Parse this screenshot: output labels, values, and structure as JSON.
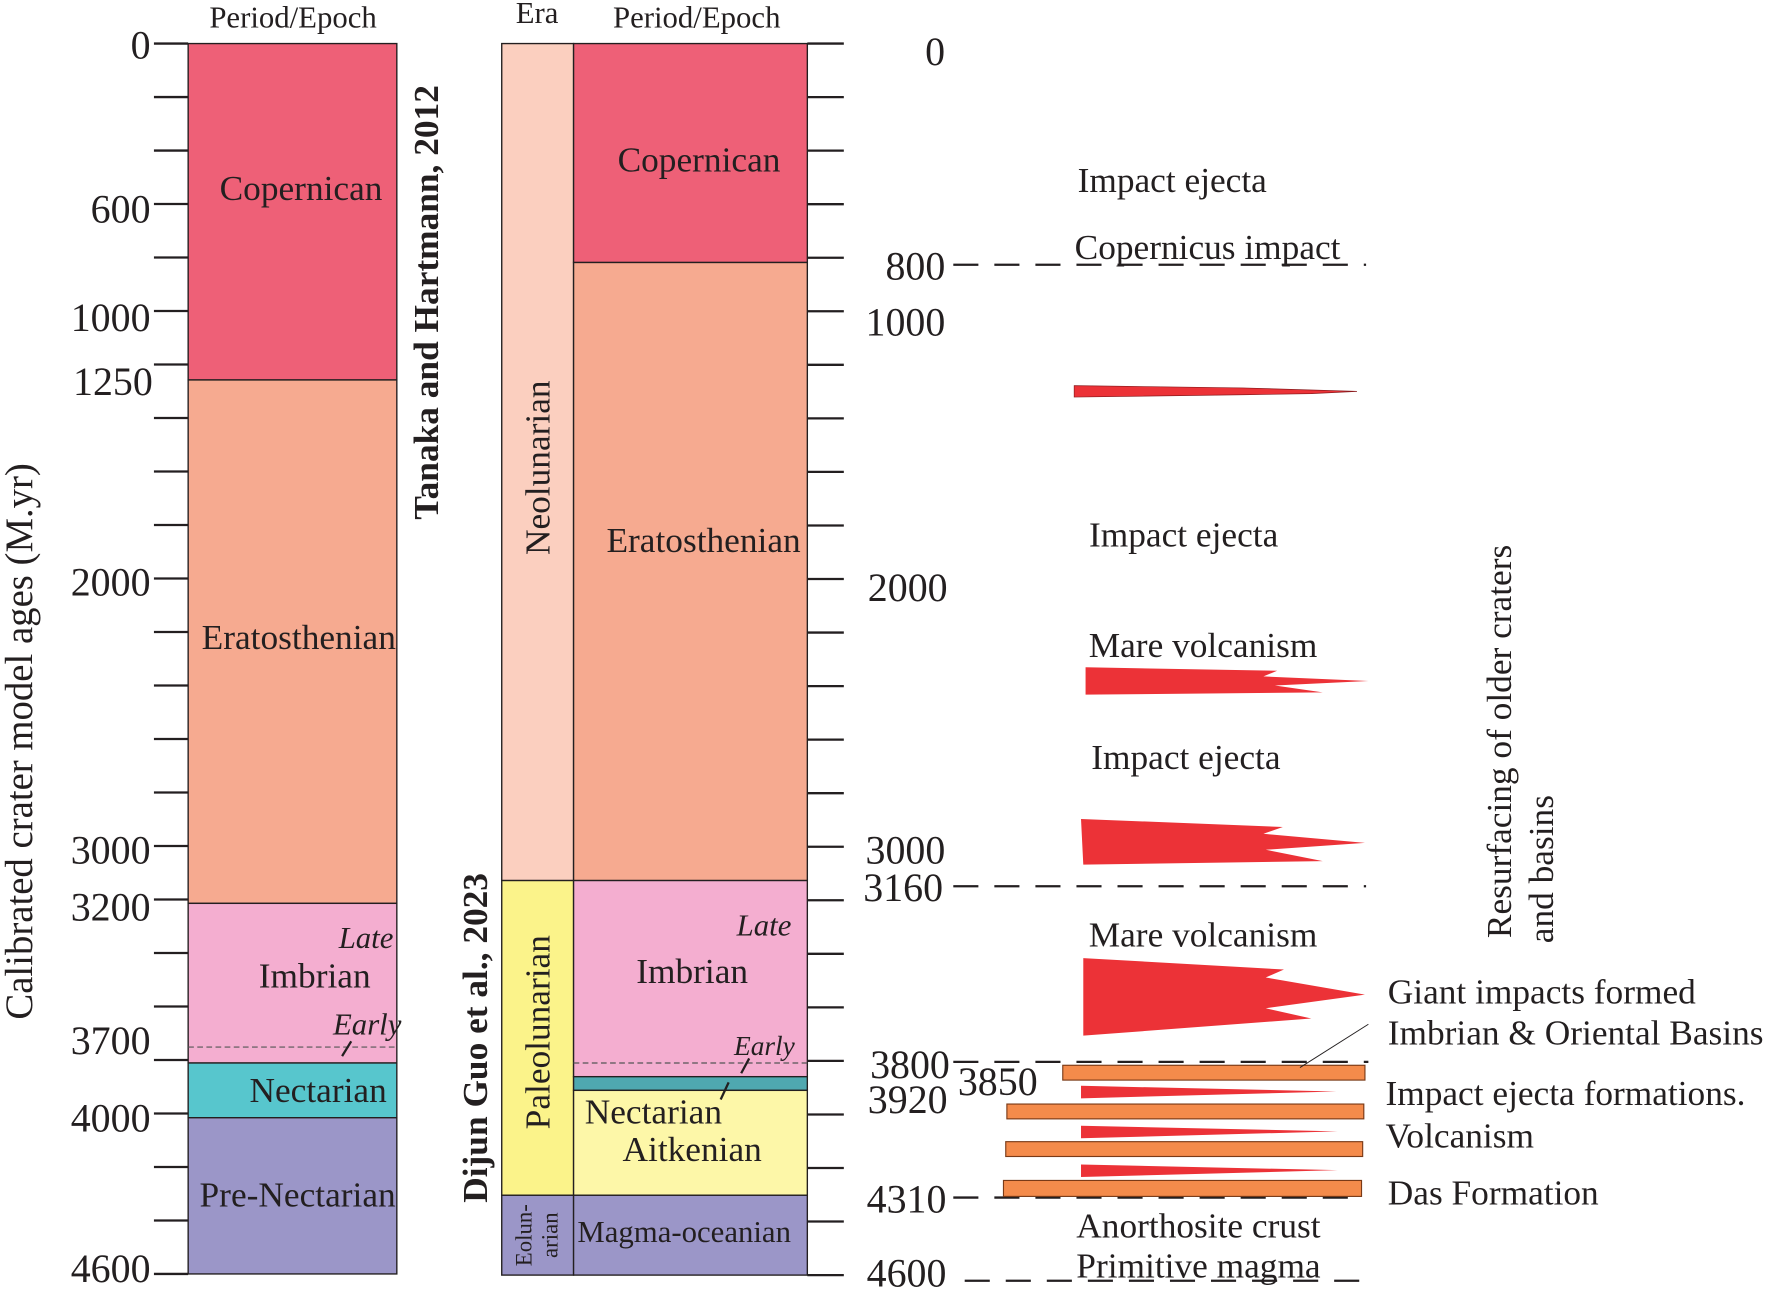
{
  "left_column": {
    "header": "Period/Epoch",
    "axis_title": "Calibrated crater model ages (M.yr)",
    "source": "Tanaka and Hartmann, 2012",
    "tick_labels": [
      "0",
      "600",
      "1000",
      "1250",
      "2000",
      "3000",
      "3200",
      "3700",
      "4000",
      "4600"
    ],
    "units": [
      {
        "name": "Copernican",
        "from": 0,
        "to": 1250,
        "color": "#ee6077"
      },
      {
        "name": "Eratosthenian",
        "from": 1250,
        "to": 3200,
        "color": "#f6aa90"
      },
      {
        "name": "Imbrian",
        "from": 3200,
        "to": 3850,
        "color": "#f4aed0",
        "late": "Late",
        "early": "Early"
      },
      {
        "name": "Nectarian",
        "from": 3850,
        "to": 4000,
        "color": "#57c6cd"
      },
      {
        "name": "Pre-Nectarian",
        "from": 4000,
        "to": 4600,
        "color": "#9b96c8"
      }
    ]
  },
  "right_column": {
    "era_header": "Era",
    "period_header": "Period/Epoch",
    "source": "Dijun Guo et al., 2023",
    "eras": [
      {
        "name": "Neolunarian",
        "color": "#fbcfbf"
      },
      {
        "name": "Paleolunarian",
        "color": "#fbf38a"
      },
      {
        "name": "Eolun-",
        "name2": "arian",
        "color": "#9b96c8"
      }
    ],
    "units": [
      {
        "name": "Copernican",
        "color": "#ee6077"
      },
      {
        "name": "Eratosthenian",
        "color": "#f6aa90"
      },
      {
        "name": "Imbrian",
        "color": "#f4aed0",
        "late": "Late",
        "early": "Early"
      },
      {
        "name": "Nectarian",
        "color": "#4fa8b0"
      },
      {
        "name": "Aitkenian",
        "color": "#fdf7a8"
      },
      {
        "name": "Magma-oceanian",
        "color": "#9b96c8"
      }
    ],
    "tick_labels": [
      "0",
      "800",
      "1000",
      "2000",
      "3000",
      "3160",
      "3800",
      "3850",
      "3920",
      "4310",
      "4600"
    ]
  },
  "events": {
    "impact_ejecta_1": "Impact ejecta",
    "copernicus_impact": "Copernicus impact",
    "impact_ejecta_2": "Impact ejecta",
    "mare_volcanism_1": "Mare volcanism",
    "impact_ejecta_3": "Impact ejecta",
    "mare_volcanism_2": "Mare volcanism",
    "giant_impacts_1": "Giant impacts formed",
    "giant_impacts_2": "Imbrian & Oriental Basins",
    "impact_ejecta_formations": "Impact ejecta formations.",
    "volcanism": "Volcanism",
    "das_formation": "Das Formation",
    "anorthosite_crust": "Anorthosite crust",
    "primitive_magma": "Primitive magma",
    "resurfacing_1": "Resurfacing of older craters",
    "resurfacing_2": "and basins"
  },
  "colors": {
    "volcanism_red": "#ec3237",
    "ejecta_orange": "#f48b4b"
  }
}
